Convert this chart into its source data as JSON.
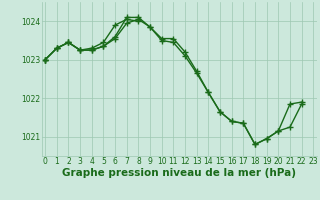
{
  "x": [
    0,
    1,
    2,
    3,
    4,
    5,
    6,
    7,
    8,
    9,
    10,
    11,
    12,
    13,
    14,
    15,
    16,
    17,
    18,
    19,
    20,
    21,
    22,
    23
  ],
  "series": [
    {
      "points": [
        [
          0,
          1023.0
        ],
        [
          1,
          1023.3
        ],
        [
          2,
          1023.45
        ],
        [
          3,
          1023.25
        ],
        [
          4,
          1023.25
        ],
        [
          5,
          1023.35
        ],
        [
          6,
          1023.6
        ],
        [
          7,
          1024.1
        ],
        [
          8,
          1024.1
        ],
        [
          9,
          1023.85
        ],
        [
          10,
          1023.55
        ],
        [
          11,
          1023.55
        ],
        [
          12,
          1023.2
        ],
        [
          13,
          1022.7
        ],
        [
          14,
          1022.15
        ],
        [
          15,
          1021.65
        ],
        [
          16,
          1021.4
        ],
        [
          17,
          1021.35
        ],
        [
          18,
          1020.8
        ],
        [
          19,
          1020.95
        ],
        [
          20,
          1021.15
        ],
        [
          21,
          1021.85
        ],
        [
          22,
          1021.9
        ],
        [
          23,
          null
        ]
      ]
    },
    {
      "points": [
        [
          0,
          1023.0
        ],
        [
          1,
          1023.3
        ],
        [
          2,
          1023.45
        ],
        [
          3,
          1023.25
        ],
        [
          4,
          1023.3
        ],
        [
          5,
          1023.45
        ],
        [
          6,
          1023.9
        ],
        [
          7,
          1024.05
        ],
        [
          8,
          1024.0
        ],
        [
          9,
          null
        ],
        [
          10,
          null
        ],
        [
          11,
          null
        ],
        [
          12,
          null
        ],
        [
          13,
          null
        ],
        [
          14,
          null
        ],
        [
          15,
          null
        ],
        [
          16,
          null
        ],
        [
          17,
          null
        ],
        [
          18,
          null
        ],
        [
          19,
          null
        ],
        [
          20,
          null
        ],
        [
          21,
          null
        ],
        [
          22,
          null
        ],
        [
          23,
          null
        ]
      ]
    },
    {
      "points": [
        [
          0,
          1023.0
        ],
        [
          1,
          null
        ],
        [
          2,
          null
        ],
        [
          3,
          null
        ],
        [
          4,
          null
        ],
        [
          5,
          null
        ],
        [
          6,
          null
        ],
        [
          7,
          null
        ],
        [
          8,
          null
        ],
        [
          9,
          null
        ],
        [
          10,
          null
        ],
        [
          11,
          null
        ],
        [
          12,
          null
        ],
        [
          13,
          null
        ],
        [
          14,
          null
        ],
        [
          15,
          null
        ],
        [
          16,
          null
        ],
        [
          17,
          null
        ],
        [
          18,
          null
        ],
        [
          19,
          null
        ],
        [
          20,
          null
        ],
        [
          21,
          null
        ],
        [
          22,
          null
        ],
        [
          23,
          null
        ]
      ]
    },
    {
      "points": [
        [
          0,
          1023.0
        ],
        [
          1,
          1023.3
        ],
        [
          2,
          1023.45
        ],
        [
          3,
          1023.25
        ],
        [
          4,
          1023.25
        ],
        [
          5,
          1023.35
        ],
        [
          6,
          1023.55
        ],
        [
          7,
          1023.95
        ],
        [
          8,
          1024.05
        ],
        [
          9,
          1023.85
        ],
        [
          10,
          1023.5
        ],
        [
          11,
          1023.45
        ],
        [
          12,
          1023.1
        ],
        [
          13,
          1022.65
        ],
        [
          14,
          1022.15
        ],
        [
          15,
          1021.65
        ],
        [
          16,
          1021.4
        ],
        [
          17,
          1021.35
        ],
        [
          18,
          1020.8
        ],
        [
          19,
          1020.95
        ],
        [
          20,
          1021.15
        ],
        [
          21,
          1021.25
        ],
        [
          22,
          1021.85
        ],
        [
          23,
          null
        ]
      ]
    }
  ],
  "ylim": [
    1020.5,
    1024.5
  ],
  "yticks": [
    1021,
    1022,
    1023,
    1024
  ],
  "xlim": [
    -0.3,
    23.3
  ],
  "xticks": [
    0,
    1,
    2,
    3,
    4,
    5,
    6,
    7,
    8,
    9,
    10,
    11,
    12,
    13,
    14,
    15,
    16,
    17,
    18,
    19,
    20,
    21,
    22,
    23
  ],
  "line_color": "#1a6b1a",
  "bg_color": "#cce8dc",
  "grid_color": "#9ec8b2",
  "xlabel": "Graphe pression niveau de la mer (hPa)",
  "xlabel_color": "#1a6b1a",
  "marker": "+",
  "marker_size": 5,
  "line_width": 1.0,
  "tick_fontsize": 5.5,
  "xlabel_fontsize": 7.5
}
